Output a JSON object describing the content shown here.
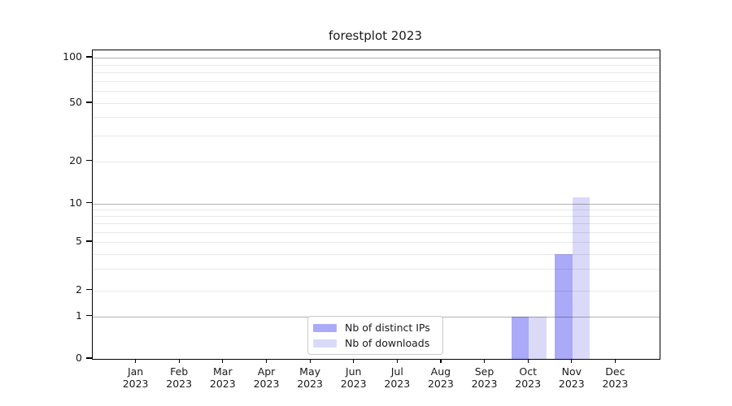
{
  "title": "forestplot 2023",
  "chart_data": {
    "type": "bar",
    "title": "forestplot 2023",
    "categories": [
      "Jan",
      "Feb",
      "Mar",
      "Apr",
      "May",
      "Jun",
      "Jul",
      "Aug",
      "Sep",
      "Oct",
      "Nov",
      "Dec"
    ],
    "x_year": "2023",
    "series": [
      {
        "name": "Nb of distinct IPs",
        "color": "#aaaaf8",
        "values": [
          0,
          0,
          0,
          0,
          0,
          0,
          0,
          0,
          0,
          1,
          4,
          0
        ]
      },
      {
        "name": "Nb of downloads",
        "color": "#dadaf8",
        "values": [
          0,
          0,
          0,
          0,
          0,
          0,
          0,
          0,
          0,
          1,
          11,
          0
        ]
      }
    ],
    "y_axis": {
      "scale": "symlog",
      "ticks": [
        0,
        1,
        2,
        5,
        10,
        20,
        50,
        100
      ],
      "major_gridlines": [
        1,
        10,
        100
      ],
      "minor_gridlines": [
        2,
        3,
        4,
        5,
        6,
        7,
        8,
        9,
        20,
        30,
        40,
        50,
        60,
        70,
        80,
        90
      ],
      "range": [
        0,
        110
      ]
    },
    "x_axis": {
      "label_format": "month over year"
    },
    "legend": {
      "position": "bottom-center-left",
      "entries": [
        "Nb of distinct IPs",
        "Nb of downloads"
      ]
    },
    "grid": "on",
    "colors": {
      "major_grid": "rgba(0,0,0,0.30)",
      "minor_grid": "rgba(0,0,0,0.09)",
      "spine": "#000000",
      "text": "#1a1a1a",
      "background": "#ffffff"
    }
  }
}
